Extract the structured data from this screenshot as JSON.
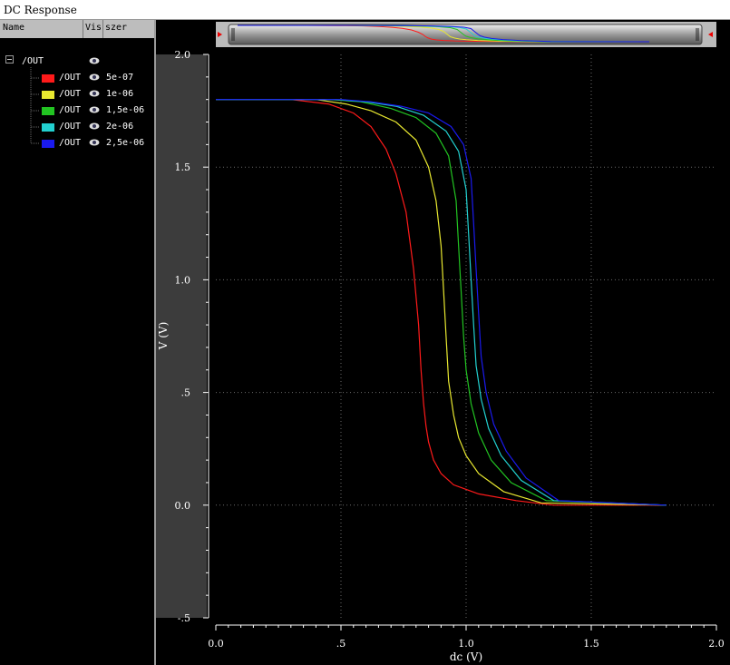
{
  "window": {
    "title": "DC Response"
  },
  "legend_panel": {
    "columns": [
      "Name",
      "Vis",
      "szer"
    ],
    "root_label": "/OUT",
    "items": [
      {
        "name": "/OUT",
        "value": "5e-07",
        "color": "#ff1a1a"
      },
      {
        "name": "/OUT",
        "value": "1e-06",
        "color": "#e8e830"
      },
      {
        "name": "/OUT",
        "value": "1,5e-06",
        "color": "#22c422"
      },
      {
        "name": "/OUT",
        "value": "2e-06",
        "color": "#22d0d0"
      },
      {
        "name": "/OUT",
        "value": "2,5e-06",
        "color": "#1a1aee"
      }
    ]
  },
  "chart_data": {
    "type": "line",
    "xlabel": "dc (V)",
    "ylabel": "V (V)",
    "xlim": [
      0,
      2.0
    ],
    "ylim": [
      -0.5,
      2.0
    ],
    "x_ticks": [
      "0.0",
      ".5",
      "1.0",
      "1.5",
      "2.0"
    ],
    "y_ticks": [
      "2.0",
      "1.5",
      "1.0",
      ".5",
      "0.0",
      "-.5"
    ],
    "grid": true,
    "series": [
      {
        "name": "5e-07",
        "color": "#ff1a1a",
        "x": [
          0,
          0.3,
          0.45,
          0.55,
          0.62,
          0.68,
          0.72,
          0.76,
          0.79,
          0.81,
          0.82,
          0.83,
          0.84,
          0.85,
          0.87,
          0.9,
          0.95,
          1.05,
          1.2,
          1.35,
          1.8
        ],
        "y": [
          1.8,
          1.8,
          1.78,
          1.74,
          1.68,
          1.58,
          1.47,
          1.3,
          1.05,
          0.8,
          0.6,
          0.45,
          0.35,
          0.28,
          0.2,
          0.14,
          0.09,
          0.05,
          0.02,
          0.0,
          0.0
        ]
      },
      {
        "name": "1e-06",
        "color": "#e8e830",
        "x": [
          0,
          0.4,
          0.52,
          0.62,
          0.72,
          0.8,
          0.85,
          0.88,
          0.9,
          0.91,
          0.92,
          0.93,
          0.95,
          0.97,
          1.0,
          1.05,
          1.15,
          1.3,
          1.8
        ],
        "y": [
          1.8,
          1.8,
          1.78,
          1.75,
          1.7,
          1.62,
          1.5,
          1.35,
          1.15,
          0.95,
          0.75,
          0.55,
          0.4,
          0.3,
          0.22,
          0.14,
          0.06,
          0.01,
          0.0
        ]
      },
      {
        "name": "1,5e-06",
        "color": "#22c422",
        "x": [
          0,
          0.45,
          0.58,
          0.7,
          0.8,
          0.88,
          0.93,
          0.96,
          0.97,
          0.98,
          0.99,
          1.0,
          1.02,
          1.05,
          1.1,
          1.18,
          1.32,
          1.8
        ],
        "y": [
          1.8,
          1.8,
          1.79,
          1.76,
          1.72,
          1.65,
          1.55,
          1.35,
          1.15,
          0.95,
          0.75,
          0.6,
          0.45,
          0.32,
          0.2,
          0.1,
          0.02,
          0.0
        ]
      },
      {
        "name": "2e-06",
        "color": "#22d0d0",
        "x": [
          0,
          0.48,
          0.6,
          0.72,
          0.83,
          0.92,
          0.97,
          1.0,
          1.01,
          1.02,
          1.03,
          1.04,
          1.06,
          1.09,
          1.14,
          1.22,
          1.35,
          1.8
        ],
        "y": [
          1.8,
          1.8,
          1.79,
          1.77,
          1.73,
          1.66,
          1.57,
          1.4,
          1.2,
          1.0,
          0.8,
          0.62,
          0.47,
          0.34,
          0.22,
          0.11,
          0.02,
          0.0
        ]
      },
      {
        "name": "2,5e-06",
        "color": "#1a1aee",
        "x": [
          0,
          0.5,
          0.62,
          0.74,
          0.85,
          0.94,
          0.99,
          1.02,
          1.03,
          1.04,
          1.05,
          1.06,
          1.08,
          1.11,
          1.16,
          1.24,
          1.37,
          1.8
        ],
        "y": [
          1.8,
          1.8,
          1.79,
          1.77,
          1.74,
          1.68,
          1.6,
          1.45,
          1.25,
          1.05,
          0.85,
          0.66,
          0.5,
          0.36,
          0.24,
          0.12,
          0.02,
          0.0
        ]
      }
    ]
  }
}
